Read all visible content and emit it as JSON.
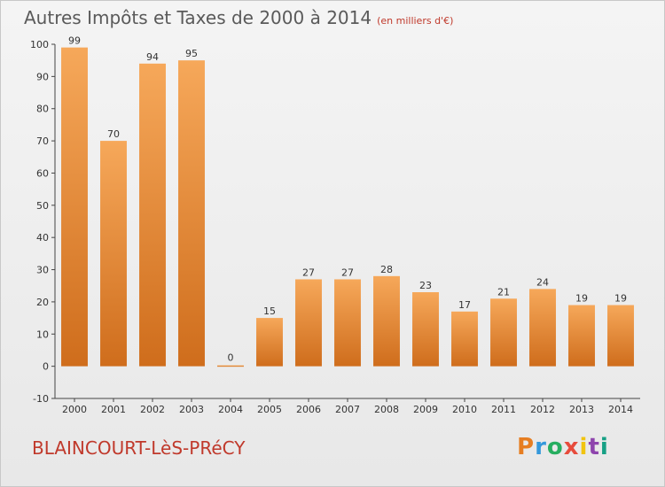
{
  "title": "Autres Impôts et Taxes de 2000 à 2014",
  "subtitle": "(en milliers d'€)",
  "municipality": "BLAINCOURT-LèS-PRéCY",
  "logo": {
    "letters": [
      "P",
      "r",
      "o",
      "x",
      "i",
      "t",
      "i"
    ],
    "colors": [
      "#e67e22",
      "#3498db",
      "#27ae60",
      "#e74c3c",
      "#f1c40f",
      "#8e44ad",
      "#16a085"
    ]
  },
  "colors": {
    "bar": "#e8872f",
    "bar_dark": "#c9681a",
    "bar_light": "#f6a85a"
  },
  "chart_data": {
    "type": "bar",
    "categories": [
      "2000",
      "2001",
      "2002",
      "2003",
      "2004",
      "2005",
      "2006",
      "2007",
      "2008",
      "2009",
      "2010",
      "2011",
      "2012",
      "2013",
      "2014"
    ],
    "values": [
      99,
      70,
      94,
      95,
      0,
      15,
      27,
      27,
      28,
      23,
      17,
      21,
      24,
      19,
      19
    ],
    "data_labels": [
      "99",
      "70",
      "94",
      "95",
      "0",
      "15",
      "27",
      "27",
      "28",
      "23",
      "17",
      "21",
      "24",
      "19",
      "19"
    ],
    "y_ticks": [
      "-10",
      "0",
      "10",
      "20",
      "30",
      "40",
      "50",
      "60",
      "70",
      "80",
      "90",
      "100"
    ],
    "ylim": [
      -10,
      100
    ],
    "grid": false
  }
}
